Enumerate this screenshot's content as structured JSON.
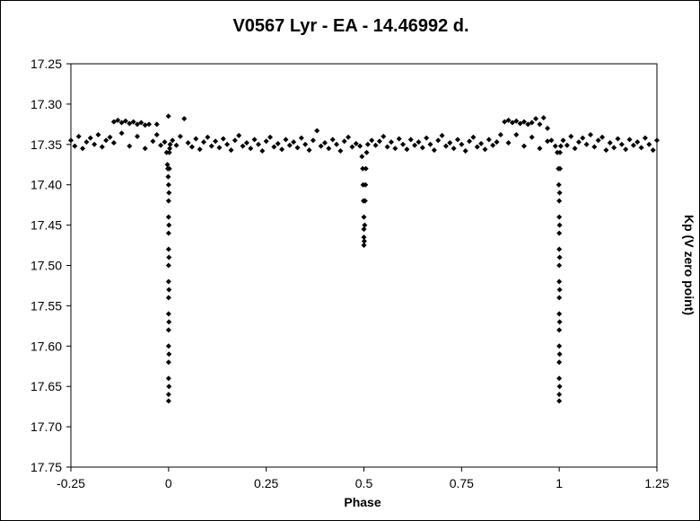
{
  "chart_data": {
    "type": "scatter",
    "title": "V0567 Lyr - EA - 14.46992 d.",
    "xlabel": "Phase",
    "ylabel": "Kp (V zero point)",
    "xlim": [
      -0.25,
      1.25
    ],
    "ylim": [
      17.25,
      17.75
    ],
    "y_inverted": true,
    "grid": false,
    "legend": "none",
    "x_ticks": [
      {
        "value": -0.25,
        "label": "-0.25"
      },
      {
        "value": 0,
        "label": "0"
      },
      {
        "value": 0.25,
        "label": "0.25"
      },
      {
        "value": 0.5,
        "label": "0.5"
      },
      {
        "value": 0.75,
        "label": "0.75"
      },
      {
        "value": 1,
        "label": "1"
      },
      {
        "value": 1.25,
        "label": "1.25"
      }
    ],
    "y_ticks": [
      {
        "value": 17.25,
        "label": "17.25"
      },
      {
        "value": 17.3,
        "label": "17.30"
      },
      {
        "value": 17.35,
        "label": "17.35"
      },
      {
        "value": 17.4,
        "label": "17.40"
      },
      {
        "value": 17.45,
        "label": "17.45"
      },
      {
        "value": 17.5,
        "label": "17.50"
      },
      {
        "value": 17.55,
        "label": "17.55"
      },
      {
        "value": 17.6,
        "label": "17.60"
      },
      {
        "value": 17.65,
        "label": "17.65"
      },
      {
        "value": 17.7,
        "label": "17.70"
      },
      {
        "value": 17.75,
        "label": "17.75"
      }
    ],
    "marker_color": "#000000",
    "series": [
      {
        "marker": "diamond",
        "points": [
          [
            -0.25,
            17.345
          ],
          [
            -0.24,
            17.352
          ],
          [
            -0.23,
            17.34
          ],
          [
            -0.22,
            17.355
          ],
          [
            -0.21,
            17.347
          ],
          [
            -0.2,
            17.342
          ],
          [
            -0.19,
            17.35
          ],
          [
            -0.18,
            17.338
          ],
          [
            -0.17,
            17.353
          ],
          [
            -0.16,
            17.345
          ],
          [
            -0.15,
            17.341
          ],
          [
            -0.14,
            17.322
          ],
          [
            -0.13,
            17.32
          ],
          [
            -0.12,
            17.323
          ],
          [
            -0.11,
            17.321
          ],
          [
            -0.1,
            17.324
          ],
          [
            -0.09,
            17.322
          ],
          [
            -0.08,
            17.325
          ],
          [
            -0.07,
            17.323
          ],
          [
            -0.06,
            17.326
          ],
          [
            -0.05,
            17.325
          ],
          [
            -0.14,
            17.348
          ],
          [
            -0.12,
            17.336
          ],
          [
            -0.1,
            17.352
          ],
          [
            -0.08,
            17.34
          ],
          [
            -0.06,
            17.355
          ],
          [
            -0.04,
            17.346
          ],
          [
            -0.03,
            17.338
          ],
          [
            -0.02,
            17.351
          ],
          [
            -0.01,
            17.347
          ],
          [
            -0.005,
            17.36
          ],
          [
            -0.003,
            17.375
          ],
          [
            -0.002,
            17.38
          ],
          [
            -0.001,
            17.39
          ],
          [
            -0.0005,
            17.315
          ],
          [
            -0.03,
            17.325
          ],
          [
            0.0,
            17.4
          ],
          [
            0.0,
            17.42
          ],
          [
            0.0,
            17.44
          ],
          [
            0.0,
            17.46
          ],
          [
            0.0,
            17.48
          ],
          [
            0.0,
            17.5
          ],
          [
            0.0,
            17.52
          ],
          [
            0.0,
            17.54
          ],
          [
            0.0,
            17.56
          ],
          [
            0.0,
            17.58
          ],
          [
            0.0,
            17.6
          ],
          [
            0.0,
            17.62
          ],
          [
            0.0,
            17.64
          ],
          [
            0.0,
            17.66
          ],
          [
            0.0,
            17.668
          ],
          [
            0.001,
            17.41
          ],
          [
            0.001,
            17.45
          ],
          [
            0.001,
            17.49
          ],
          [
            0.001,
            17.53
          ],
          [
            0.001,
            17.57
          ],
          [
            0.001,
            17.61
          ],
          [
            0.001,
            17.65
          ],
          [
            0.002,
            17.38
          ],
          [
            0.002,
            17.36
          ],
          [
            0.003,
            17.355
          ],
          [
            0.004,
            17.35
          ],
          [
            0.01,
            17.345
          ],
          [
            0.02,
            17.351
          ],
          [
            0.03,
            17.34
          ],
          [
            0.04,
            17.318
          ],
          [
            0.05,
            17.348
          ],
          [
            0.06,
            17.353
          ],
          [
            0.07,
            17.343
          ],
          [
            0.08,
            17.356
          ],
          [
            0.09,
            17.347
          ],
          [
            0.1,
            17.341
          ],
          [
            0.11,
            17.352
          ],
          [
            0.12,
            17.346
          ],
          [
            0.13,
            17.354
          ],
          [
            0.14,
            17.343
          ],
          [
            0.15,
            17.35
          ],
          [
            0.16,
            17.357
          ],
          [
            0.17,
            17.345
          ],
          [
            0.18,
            17.339
          ],
          [
            0.19,
            17.352
          ],
          [
            0.2,
            17.348
          ],
          [
            0.21,
            17.355
          ],
          [
            0.22,
            17.344
          ],
          [
            0.23,
            17.35
          ],
          [
            0.24,
            17.358
          ],
          [
            0.25,
            17.346
          ],
          [
            0.26,
            17.341
          ],
          [
            0.27,
            17.353
          ],
          [
            0.28,
            17.349
          ],
          [
            0.29,
            17.356
          ],
          [
            0.3,
            17.344
          ],
          [
            0.31,
            17.351
          ],
          [
            0.32,
            17.347
          ],
          [
            0.33,
            17.354
          ],
          [
            0.34,
            17.342
          ],
          [
            0.35,
            17.35
          ],
          [
            0.36,
            17.357
          ],
          [
            0.37,
            17.345
          ],
          [
            0.38,
            17.333
          ],
          [
            0.39,
            17.352
          ],
          [
            0.4,
            17.348
          ],
          [
            0.41,
            17.355
          ],
          [
            0.42,
            17.344
          ],
          [
            0.43,
            17.35
          ],
          [
            0.44,
            17.358
          ],
          [
            0.45,
            17.346
          ],
          [
            0.46,
            17.341
          ],
          [
            0.47,
            17.353
          ],
          [
            0.48,
            17.349
          ],
          [
            0.49,
            17.352
          ],
          [
            0.495,
            17.365
          ],
          [
            0.497,
            17.38
          ],
          [
            0.498,
            17.4
          ],
          [
            0.499,
            17.42
          ],
          [
            0.5,
            17.44
          ],
          [
            0.5,
            17.455
          ],
          [
            0.5,
            17.465
          ],
          [
            0.5,
            17.475
          ],
          [
            0.501,
            17.47
          ],
          [
            0.502,
            17.45
          ],
          [
            0.503,
            17.42
          ],
          [
            0.504,
            17.4
          ],
          [
            0.505,
            17.38
          ],
          [
            0.507,
            17.36
          ],
          [
            0.51,
            17.35
          ],
          [
            0.52,
            17.345
          ],
          [
            0.53,
            17.351
          ],
          [
            0.54,
            17.346
          ],
          [
            0.55,
            17.34
          ],
          [
            0.56,
            17.353
          ],
          [
            0.57,
            17.347
          ],
          [
            0.58,
            17.355
          ],
          [
            0.59,
            17.343
          ],
          [
            0.6,
            17.35
          ],
          [
            0.61,
            17.356
          ],
          [
            0.62,
            17.344
          ],
          [
            0.63,
            17.351
          ],
          [
            0.64,
            17.347
          ],
          [
            0.65,
            17.354
          ],
          [
            0.66,
            17.342
          ],
          [
            0.67,
            17.35
          ],
          [
            0.68,
            17.357
          ],
          [
            0.69,
            17.345
          ],
          [
            0.7,
            17.339
          ],
          [
            0.71,
            17.352
          ],
          [
            0.72,
            17.348
          ],
          [
            0.73,
            17.355
          ],
          [
            0.74,
            17.344
          ],
          [
            0.75,
            17.35
          ],
          [
            0.76,
            17.358
          ],
          [
            0.77,
            17.346
          ],
          [
            0.78,
            17.341
          ],
          [
            0.79,
            17.353
          ],
          [
            0.8,
            17.349
          ],
          [
            0.81,
            17.356
          ],
          [
            0.82,
            17.344
          ],
          [
            0.83,
            17.351
          ],
          [
            0.84,
            17.347
          ],
          [
            0.85,
            17.338
          ],
          [
            0.86,
            17.322
          ],
          [
            0.87,
            17.32
          ],
          [
            0.88,
            17.323
          ],
          [
            0.89,
            17.321
          ],
          [
            0.9,
            17.324
          ],
          [
            0.91,
            17.322
          ],
          [
            0.92,
            17.325
          ],
          [
            0.93,
            17.323
          ],
          [
            0.94,
            17.318
          ],
          [
            0.95,
            17.325
          ],
          [
            0.96,
            17.317
          ],
          [
            0.97,
            17.33
          ],
          [
            0.98,
            17.345
          ],
          [
            0.99,
            17.352
          ],
          [
            0.995,
            17.36
          ],
          [
            0.998,
            17.38
          ],
          [
            0.999,
            17.4
          ],
          [
            0.87,
            17.348
          ],
          [
            0.89,
            17.338
          ],
          [
            0.91,
            17.352
          ],
          [
            0.93,
            17.341
          ],
          [
            0.95,
            17.355
          ],
          [
            0.97,
            17.346
          ],
          [
            1.0,
            17.42
          ],
          [
            1.0,
            17.44
          ],
          [
            1.0,
            17.46
          ],
          [
            1.0,
            17.48
          ],
          [
            1.0,
            17.5
          ],
          [
            1.0,
            17.52
          ],
          [
            1.0,
            17.54
          ],
          [
            1.0,
            17.56
          ],
          [
            1.0,
            17.58
          ],
          [
            1.0,
            17.6
          ],
          [
            1.0,
            17.62
          ],
          [
            1.0,
            17.64
          ],
          [
            1.0,
            17.66
          ],
          [
            1.0,
            17.668
          ],
          [
            1.001,
            17.41
          ],
          [
            1.001,
            17.45
          ],
          [
            1.001,
            17.49
          ],
          [
            1.001,
            17.53
          ],
          [
            1.001,
            17.57
          ],
          [
            1.001,
            17.61
          ],
          [
            1.001,
            17.65
          ],
          [
            1.002,
            17.38
          ],
          [
            1.002,
            17.36
          ],
          [
            1.004,
            17.352
          ],
          [
            1.01,
            17.345
          ],
          [
            1.02,
            17.351
          ],
          [
            1.03,
            17.34
          ],
          [
            1.04,
            17.355
          ],
          [
            1.05,
            17.347
          ],
          [
            1.06,
            17.342
          ],
          [
            1.07,
            17.35
          ],
          [
            1.08,
            17.338
          ],
          [
            1.09,
            17.353
          ],
          [
            1.1,
            17.345
          ],
          [
            1.11,
            17.341
          ],
          [
            1.12,
            17.357
          ],
          [
            1.13,
            17.348
          ],
          [
            1.14,
            17.354
          ],
          [
            1.15,
            17.343
          ],
          [
            1.16,
            17.35
          ],
          [
            1.17,
            17.356
          ],
          [
            1.18,
            17.344
          ],
          [
            1.19,
            17.351
          ],
          [
            1.2,
            17.347
          ],
          [
            1.21,
            17.354
          ],
          [
            1.22,
            17.342
          ],
          [
            1.23,
            17.35
          ],
          [
            1.24,
            17.357
          ],
          [
            1.25,
            17.345
          ]
        ]
      }
    ]
  }
}
